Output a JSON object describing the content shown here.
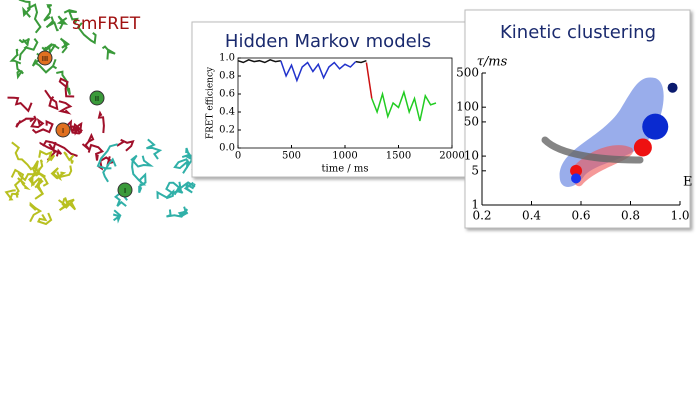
{
  "structure": {
    "title": "smFRET",
    "markers": [
      "III",
      "II",
      "I",
      "I"
    ]
  },
  "chart_data": [
    {
      "type": "line",
      "title": "Hidden Markov models",
      "xlabel": "time / ms",
      "ylabel": "FRET efficiency",
      "x": [
        0,
        50,
        100,
        150,
        200,
        250,
        300,
        350,
        400,
        450,
        500,
        550,
        600,
        650,
        700,
        750,
        800,
        850,
        900,
        950,
        1000,
        1050,
        1100,
        1150,
        1200,
        1250,
        1300,
        1350,
        1400,
        1450,
        1500,
        1550,
        1600,
        1650,
        1700,
        1750,
        1800,
        1850
      ],
      "xlim": [
        0,
        2000
      ],
      "xticks": [
        0,
        500,
        1000,
        1500,
        2000
      ],
      "ylim": [
        0,
        1
      ],
      "yticks": [
        {
          "value": 0,
          "label": "0.0"
        },
        {
          "value": 0.2,
          "label": "0.2"
        },
        {
          "value": 0.4,
          "label": "0.4"
        },
        {
          "value": 0.6,
          "label": "0.6"
        },
        {
          "value": 0.8,
          "label": "0.8"
        },
        {
          "value": 1,
          "label": "1.0"
        }
      ],
      "series": [
        {
          "color": "#111111",
          "values": [
            0.97,
            0.95,
            0.98,
            0.96,
            0.97,
            0.95,
            0.98,
            0.96,
            0.97,
            null,
            null,
            null,
            null,
            null,
            null,
            null,
            null,
            null,
            null,
            null,
            null,
            null,
            0.96,
            0.95,
            0.97,
            null,
            null,
            null,
            null,
            null,
            null,
            null,
            null,
            null,
            null,
            null,
            null,
            null
          ]
        },
        {
          "color": "#2233cc",
          "values": [
            null,
            null,
            null,
            null,
            null,
            null,
            null,
            null,
            0.97,
            0.8,
            0.92,
            0.75,
            0.9,
            0.95,
            0.85,
            0.93,
            0.78,
            0.9,
            0.95,
            0.88,
            0.93,
            0.9,
            0.96,
            null,
            null,
            null,
            null,
            null,
            null,
            null,
            null,
            null,
            null,
            null,
            null,
            null,
            null,
            null
          ]
        },
        {
          "color": "#cc1111",
          "values": [
            null,
            null,
            null,
            null,
            null,
            null,
            null,
            null,
            null,
            null,
            null,
            null,
            null,
            null,
            null,
            null,
            null,
            null,
            null,
            null,
            null,
            null,
            null,
            null,
            0.95,
            0.55,
            null,
            null,
            null,
            null,
            null,
            null,
            null,
            null,
            null,
            null,
            null,
            null
          ]
        },
        {
          "color": "#22cc22",
          "values": [
            null,
            null,
            null,
            null,
            null,
            null,
            null,
            null,
            null,
            null,
            null,
            null,
            null,
            null,
            null,
            null,
            null,
            null,
            null,
            null,
            null,
            null,
            null,
            null,
            null,
            0.55,
            0.4,
            0.6,
            0.35,
            0.5,
            0.45,
            0.62,
            0.4,
            0.55,
            0.3,
            0.58,
            0.48,
            0.5
          ]
        }
      ]
    },
    {
      "type": "scatter",
      "title": "Kinetic clustering",
      "xlabel": "E",
      "ylabel": "τ/ms",
      "log_y": true,
      "x": [
        0.97,
        0.9,
        0.85,
        0.58,
        0.58
      ],
      "values": [
        250,
        40,
        15,
        5,
        3.5
      ],
      "colors": [
        "#0a1a6e",
        "#0a2ad0",
        "#ee1111",
        "#ee1111",
        "#1a33ee"
      ],
      "xlim": [
        0.2,
        1.0
      ],
      "xticks": [
        {
          "value": 0.2,
          "label": "0.2"
        },
        {
          "value": 0.4,
          "label": "0.4"
        },
        {
          "value": 0.6,
          "label": "0.6"
        },
        {
          "value": 0.8,
          "label": "0.8"
        },
        {
          "value": 1.0,
          "label": "1.0"
        }
      ],
      "ylim": [
        1,
        500
      ],
      "yticks": [
        1,
        5,
        10,
        50,
        100,
        500
      ]
    }
  ]
}
